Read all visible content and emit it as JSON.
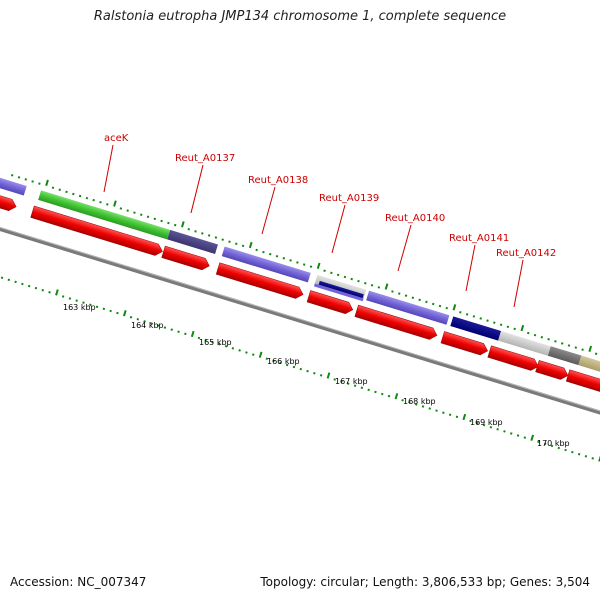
{
  "header": {
    "title": "Ralstonia eutropha JMP134 chromosome 1, complete sequence"
  },
  "footer": {
    "accession": "Accession: NC_007347",
    "summary": "Topology: circular; Length: 3,806,533 bp; Genes: 3,504"
  },
  "colors": {
    "backbone": "#7a7a7a",
    "cds_forward": "#ee1111",
    "label": "#cc0000",
    "tick": "#118811"
  },
  "gene_labels": [
    {
      "name": "aceK"
    },
    {
      "name": "Reut_A0137"
    },
    {
      "name": "Reut_A0138"
    },
    {
      "name": "Reut_A0139"
    },
    {
      "name": "Reut_A0140"
    },
    {
      "name": "Reut_A0141"
    },
    {
      "name": "Reut_A0142"
    }
  ],
  "scale_labels": [
    "163 kbp",
    "164 kbp",
    "165 kbp",
    "166 kbp",
    "167 kbp",
    "168 kbp",
    "169 kbp",
    "170 kbp"
  ]
}
